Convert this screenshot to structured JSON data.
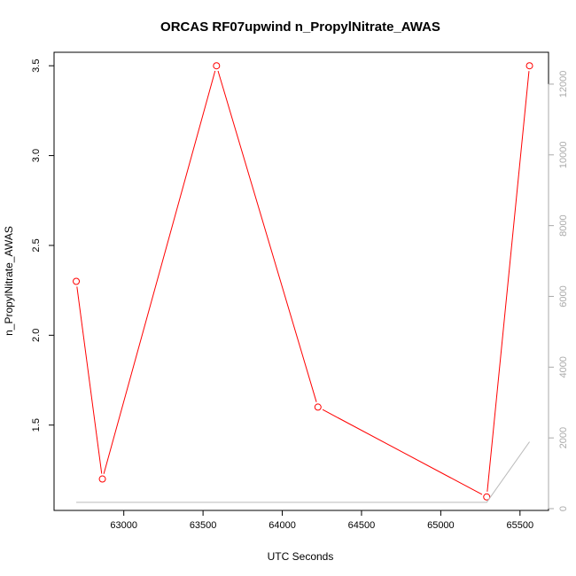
{
  "chart_data": {
    "type": "line",
    "title": "ORCAS RF07upwind n_PropylNitrate_AWAS",
    "xlabel": "UTC Seconds",
    "ylabel": "n_PropylNitrate_AWAS",
    "xlim": [
      62560,
      65680
    ],
    "ylim": [
      1.025,
      3.575
    ],
    "y2lim": [
      -50,
      12900
    ],
    "x_ticks": [
      63000,
      63500,
      64000,
      64500,
      65000,
      65500
    ],
    "y_ticks": [
      1.5,
      2.0,
      2.5,
      3.0,
      3.5
    ],
    "y2_ticks": [
      0,
      2000,
      4000,
      6000,
      8000,
      10000,
      12000
    ],
    "x_tick_labels": [
      "63000",
      "63500",
      "64000",
      "64500",
      "65000",
      "65500"
    ],
    "y_tick_labels": [
      "1.5",
      "2.0",
      "2.5",
      "3.0",
      "3.5"
    ],
    "y2_tick_labels": [
      "0",
      "2000",
      "4000",
      "6000",
      "8000",
      "10000",
      "12000"
    ],
    "grid": false,
    "series": [
      {
        "axis": "left",
        "color": "#ff0000",
        "marker": "open-circle",
        "x": [
          62700,
          62865,
          63585,
          64225,
          65290,
          65560
        ],
        "y": [
          2.3,
          1.2,
          3.5,
          1.6,
          1.1,
          3.5
        ]
      },
      {
        "axis": "right",
        "color": "#bbbbbb",
        "marker": "none",
        "x": [
          62700,
          65290,
          65560
        ],
        "y": [
          180,
          180,
          1890
        ]
      }
    ]
  }
}
